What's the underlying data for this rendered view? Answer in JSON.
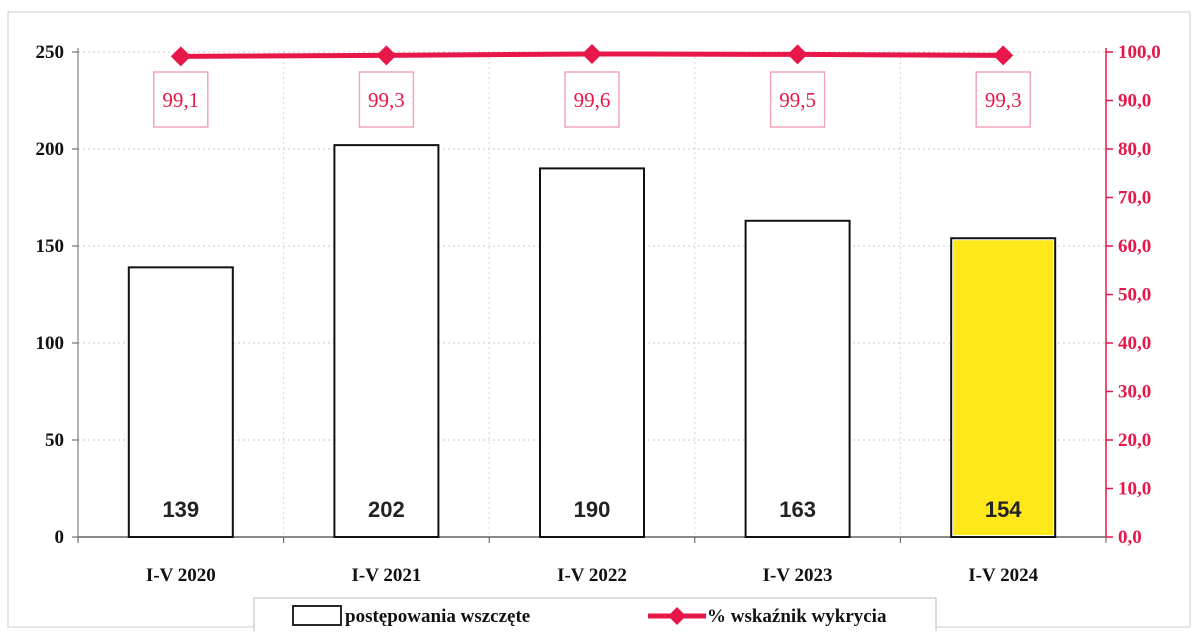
{
  "chart_data": {
    "type": "bar",
    "categories": [
      "I-V 2020",
      "I-V 2021",
      "I-V 2022",
      "I-V 2023",
      "I-V 2024"
    ],
    "series": [
      {
        "name": "postępowania wszczęte",
        "type": "bar",
        "axis": "left",
        "values": [
          139,
          202,
          190,
          163,
          154
        ],
        "labels": [
          "139",
          "202",
          "190",
          "163",
          "154"
        ]
      },
      {
        "name": "% wskaźnik wykrycia",
        "type": "line",
        "axis": "right",
        "values": [
          99.1,
          99.3,
          99.6,
          99.5,
          99.3
        ],
        "labels": [
          "99,1",
          "99,3",
          "99,6",
          "99,5",
          "99,3"
        ]
      }
    ],
    "left_axis": {
      "ylim": [
        0,
        250
      ],
      "ticks": [
        "0",
        "50",
        "100",
        "150",
        "200",
        "250"
      ]
    },
    "right_axis": {
      "ylim": [
        0,
        100
      ],
      "ticks": [
        "0,0",
        "10,0",
        "20,0",
        "30,0",
        "40,0",
        "50,0",
        "60,0",
        "70,0",
        "80,0",
        "90,0",
        "100,0"
      ]
    },
    "grid": true,
    "legend": "bottom",
    "colors": {
      "bar_fill": "#ffffff",
      "bar_stroke": "#111111",
      "line": "#e8174a",
      "highlight": "#ffe600"
    }
  }
}
